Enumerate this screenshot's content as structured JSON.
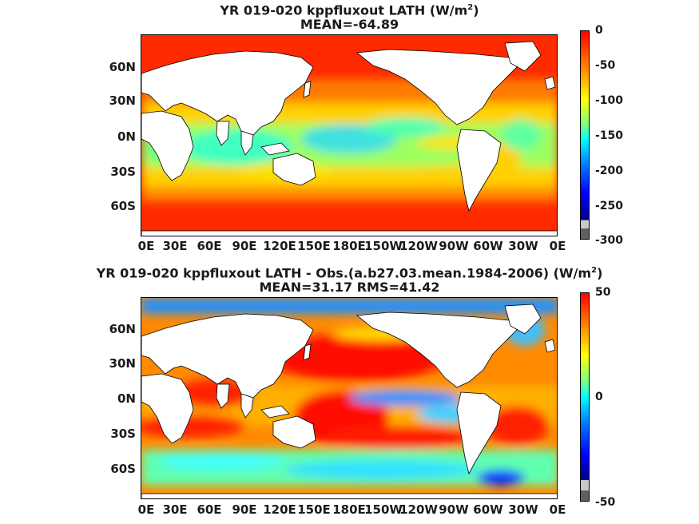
{
  "panels": [
    {
      "title_prefix": "YR 019-020 kppfluxout  LATH (W/m",
      "title_sup": "2",
      "title_suffix": ")",
      "subtitle": "MEAN=-64.89",
      "colorbar_ticks": [
        "0",
        "-50",
        "-100",
        "-150",
        "-200",
        "-250",
        "-300"
      ]
    },
    {
      "title_prefix": "YR 019-020 kppfluxout LATH - Obs.(a.b27.03.mean.1984-2006) (W/m",
      "title_sup": "2",
      "title_suffix": ")",
      "subtitle": "MEAN=31.17 RMS=41.42",
      "colorbar_ticks": [
        "50",
        "0",
        "-50"
      ]
    }
  ],
  "x_ticks": [
    "0E",
    "30E",
    "60E",
    "90E",
    "120E",
    "150E",
    "180E",
    "150W",
    "120W",
    "90W",
    "60W",
    "30W",
    "0E"
  ],
  "y_ticks": [
    "60N",
    "30N",
    "0N",
    "30S",
    "60S"
  ],
  "colors": {
    "land": "#ffffff",
    "coast": "#000000",
    "colormap": [
      "#00008f",
      "#0000ff",
      "#0080ff",
      "#00ffff",
      "#80ff80",
      "#ffff00",
      "#ff8000",
      "#ff0000"
    ]
  }
}
